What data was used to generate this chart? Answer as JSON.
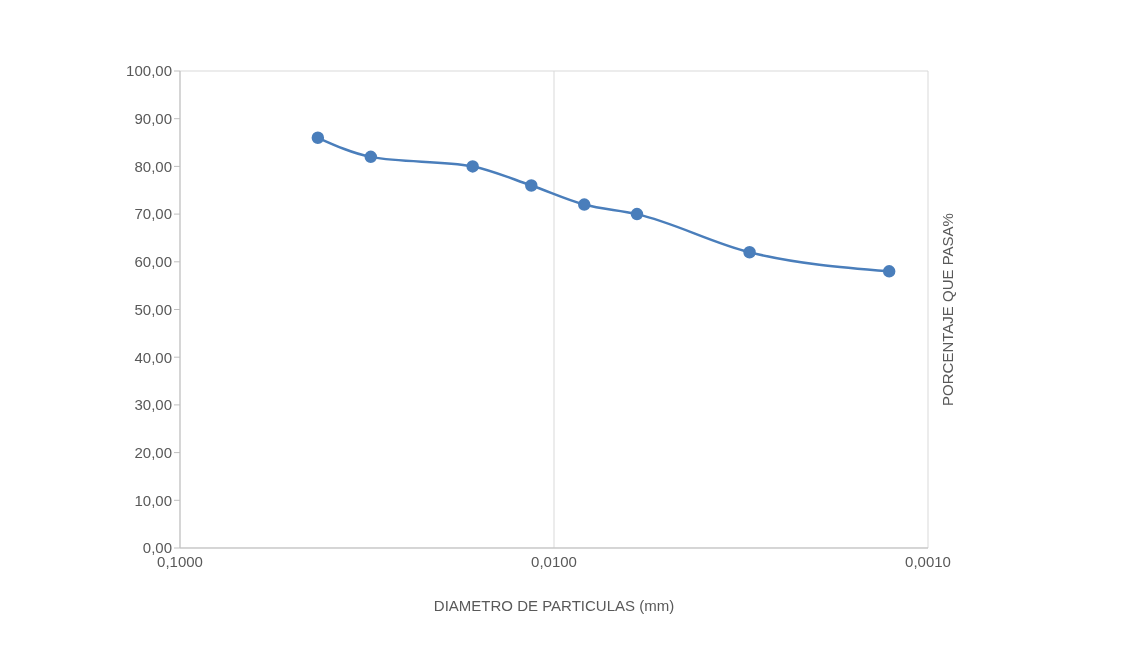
{
  "chart_data": {
    "type": "line",
    "xlabel": "DIAMETRO DE PARTICULAS (mm)",
    "ylabel": "PORCENTAJE QUE PASA%",
    "x": [
      0.0428,
      0.0309,
      0.0165,
      0.0115,
      0.0083,
      0.006,
      0.003,
      0.00127
    ],
    "series": [
      {
        "color": "#4a7ebb",
        "values": [
          86,
          82,
          80,
          76,
          72,
          70,
          62,
          58
        ]
      }
    ],
    "log": "x",
    "xlim": [
      0.1,
      0.001
    ],
    "xticks": [
      {
        "value": 0.1,
        "label": "0,1000"
      },
      {
        "value": 0.01,
        "label": "0,0100"
      },
      {
        "value": 0.001,
        "label": "0,0010"
      }
    ],
    "ylim": [
      0,
      100
    ],
    "yticks": [
      {
        "value": 0,
        "label": "0,00"
      },
      {
        "value": 10,
        "label": "10,00"
      },
      {
        "value": 20,
        "label": "20,00"
      },
      {
        "value": 30,
        "label": "30,00"
      },
      {
        "value": 40,
        "label": "40,00"
      },
      {
        "value": 50,
        "label": "50,00"
      },
      {
        "value": 60,
        "label": "60,00"
      },
      {
        "value": 70,
        "label": "70,00"
      },
      {
        "value": 80,
        "label": "80,00"
      },
      {
        "value": 90,
        "label": "90,00"
      },
      {
        "value": 100,
        "label": "100,00"
      }
    ],
    "grid": true,
    "marker": "circle",
    "line_style": "solid",
    "legend": false
  }
}
